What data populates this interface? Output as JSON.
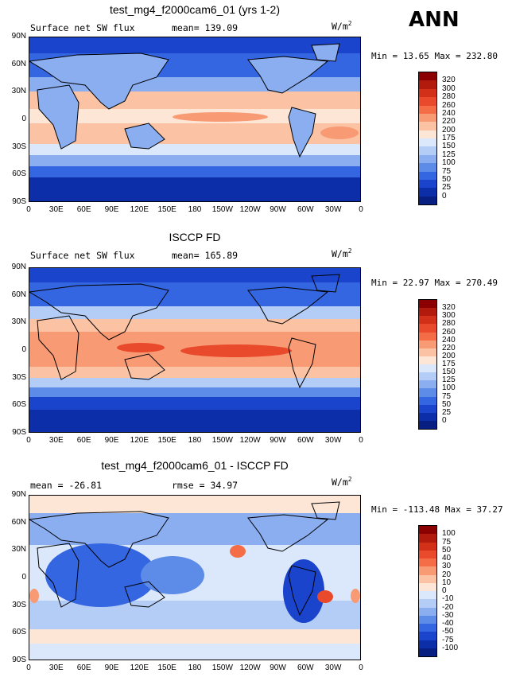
{
  "season": "ANN",
  "ticks": {
    "lat": [
      "90N",
      "60N",
      "30N",
      "0",
      "30S",
      "60S",
      "90S"
    ],
    "lon": [
      "0",
      "30E",
      "60E",
      "90E",
      "120E",
      "150E",
      "180",
      "150W",
      "120W",
      "90W",
      "60W",
      "30W",
      "0"
    ]
  },
  "panels": [
    {
      "title": "test_mg4_f2000cam6_01 (yrs 1-2)",
      "left_label": "Surface net SW flux",
      "center_label": "mean= 139.09",
      "units": "W/m",
      "units_exp": "2",
      "min_max": "Min =   13.65 Max =  232.80",
      "levels": [
        "320",
        "300",
        "280",
        "260",
        "240",
        "220",
        "200",
        "175",
        "150",
        "125",
        "100",
        "75",
        "50",
        "25",
        "0"
      ],
      "colors": [
        "#8b0000",
        "#b11a0c",
        "#d3301a",
        "#ea4a2c",
        "#f46d46",
        "#f89a74",
        "#fbc3a4",
        "#fde6d6",
        "#dbe8fb",
        "#b4cdf6",
        "#8aaef0",
        "#5c8be8",
        "#3366e0",
        "#1a44cc",
        "#0c2ea8",
        "#071f80"
      ]
    },
    {
      "title": "ISCCP FD",
      "left_label": "Surface net SW flux",
      "center_label": "mean= 165.89",
      "units": "W/m",
      "units_exp": "2",
      "min_max": "Min =   22.97 Max =  270.49",
      "levels": [
        "320",
        "300",
        "280",
        "260",
        "240",
        "220",
        "200",
        "175",
        "150",
        "125",
        "100",
        "75",
        "50",
        "25",
        "0"
      ],
      "colors": [
        "#8b0000",
        "#b11a0c",
        "#d3301a",
        "#ea4a2c",
        "#f46d46",
        "#f89a74",
        "#fbc3a4",
        "#fde6d6",
        "#dbe8fb",
        "#b4cdf6",
        "#8aaef0",
        "#5c8be8",
        "#3366e0",
        "#1a44cc",
        "#0c2ea8",
        "#071f80"
      ]
    },
    {
      "title": "test_mg4_f2000cam6_01 - ISCCP FD",
      "left_label": "mean = -26.81",
      "center_label": "rmse =  34.97",
      "units": "W/m",
      "units_exp": "2",
      "min_max": "Min = -113.48 Max =   37.27",
      "levels": [
        "100",
        "75",
        "50",
        "40",
        "30",
        "20",
        "10",
        "0",
        "-10",
        "-20",
        "-30",
        "-40",
        "-50",
        "-75",
        "-100"
      ],
      "colors": [
        "#8b0000",
        "#b11a0c",
        "#d3301a",
        "#ea4a2c",
        "#f46d46",
        "#f89a74",
        "#fbc3a4",
        "#fde6d6",
        "#dbe8fb",
        "#b4cdf6",
        "#8aaef0",
        "#5c8be8",
        "#3366e0",
        "#1a44cc",
        "#0c2ea8",
        "#071f80"
      ]
    }
  ]
}
